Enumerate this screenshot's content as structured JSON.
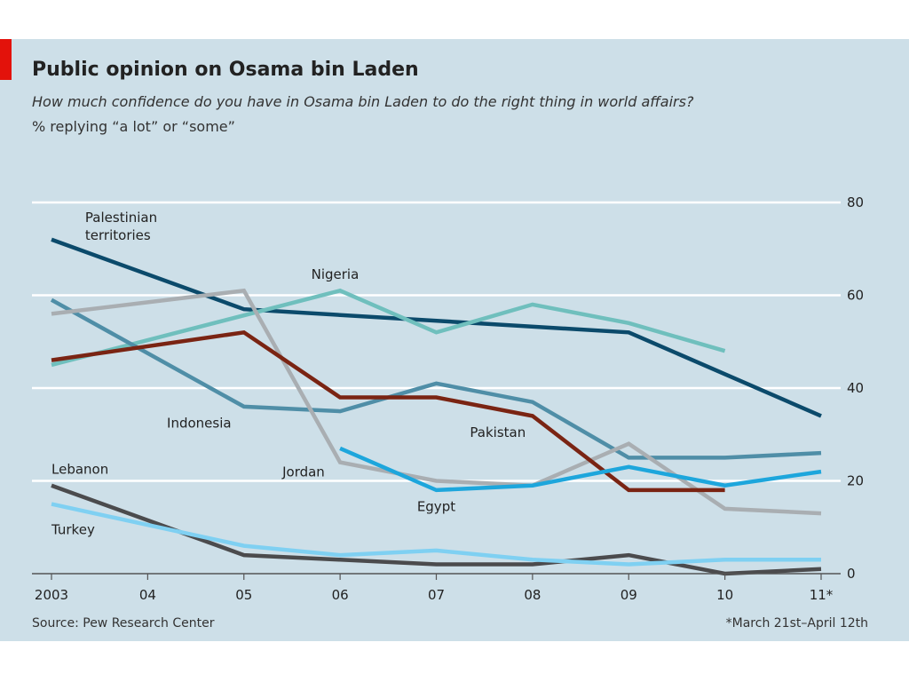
{
  "chart_data": {
    "type": "line",
    "title": "Public opinion on Osama bin Laden",
    "subtitle": "How much confidence do you have in Osama bin Laden to do the right thing in world affairs?",
    "unit_label": "% replying “a lot” or “some”",
    "x": [
      2003,
      2004,
      2005,
      2006,
      2007,
      2008,
      2009,
      2010,
      2011
    ],
    "x_tick_labels": [
      "2003",
      "04",
      "05",
      "06",
      "07",
      "08",
      "09",
      "10",
      "11*"
    ],
    "ylim": [
      0,
      80
    ],
    "y_ticks": [
      0,
      20,
      40,
      60,
      80
    ],
    "y_axis_side": "right",
    "grid": true,
    "series": [
      {
        "name": "Palestinian territories",
        "color": "#0b4a6b",
        "values": [
          72,
          null,
          57,
          null,
          null,
          null,
          52,
          null,
          34
        ]
      },
      {
        "name": "Nigeria",
        "color": "#6fbfbd",
        "values": [
          45,
          null,
          null,
          61,
          52,
          58,
          54,
          48,
          null
        ]
      },
      {
        "name": "Indonesia",
        "color": "#4f8ea7",
        "values": [
          59,
          null,
          36,
          35,
          41,
          37,
          25,
          25,
          26
        ]
      },
      {
        "name": "Jordan",
        "color": "#a9aeb2",
        "values": [
          56,
          null,
          61,
          24,
          20,
          19,
          28,
          14,
          13
        ]
      },
      {
        "name": "Pakistan",
        "color": "#7a2413",
        "values": [
          46,
          null,
          52,
          38,
          38,
          34,
          18,
          18,
          null
        ]
      },
      {
        "name": "Egypt",
        "color": "#1da6dc",
        "values": [
          null,
          null,
          null,
          27,
          18,
          19,
          23,
          19,
          22
        ]
      },
      {
        "name": "Lebanon",
        "color": "#4b4b4d",
        "values": [
          19,
          null,
          4,
          3,
          2,
          2,
          4,
          0,
          1
        ]
      },
      {
        "name": "Turkey",
        "color": "#7fd0f2",
        "values": [
          15,
          null,
          6,
          4,
          5,
          3,
          2,
          3,
          3
        ]
      }
    ],
    "series_labels": [
      {
        "series": "Palestinian territories",
        "lines": [
          "Palestinian",
          "territories"
        ],
        "x": 2003.35,
        "y": 75.8
      },
      {
        "series": "Nigeria",
        "lines": [
          "Nigeria"
        ],
        "x": 2005.7,
        "y": 63.5
      },
      {
        "series": "Indonesia",
        "lines": [
          "Indonesia"
        ],
        "x": 2004.2,
        "y": 31.5
      },
      {
        "series": "Jordan",
        "lines": [
          "Jordan"
        ],
        "x": 2005.4,
        "y": 21.0
      },
      {
        "series": "Pakistan",
        "lines": [
          "Pakistan"
        ],
        "x": 2007.35,
        "y": 29.5
      },
      {
        "series": "Egypt",
        "lines": [
          "Egypt"
        ],
        "x": 2006.8,
        "y": 13.5
      },
      {
        "series": "Lebanon",
        "lines": [
          "Lebanon"
        ],
        "x": 2003.0,
        "y": 21.5
      },
      {
        "series": "Turkey",
        "lines": [
          "Turkey"
        ],
        "x": 2003.0,
        "y": 8.5
      }
    ],
    "source": "Source: Pew Research Center",
    "footnote": "*March 21st–April 12th"
  }
}
